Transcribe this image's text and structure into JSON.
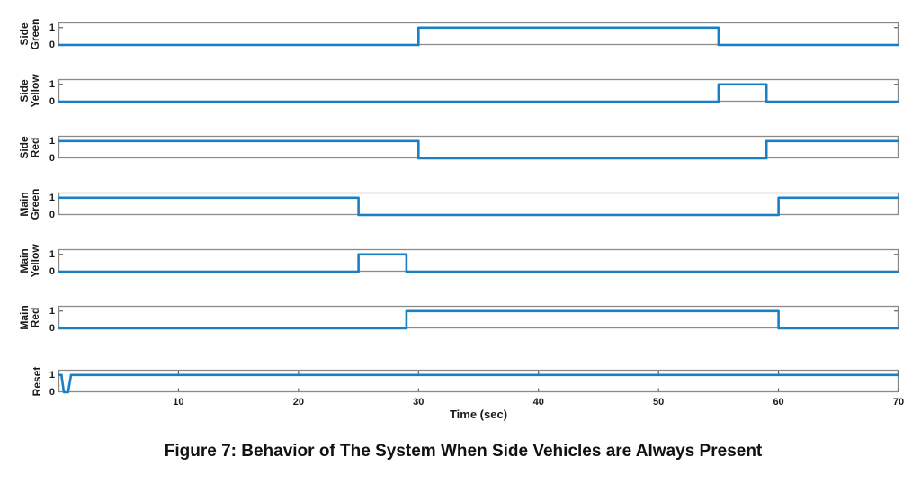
{
  "figure": {
    "caption": "Figure 7: Behavior of The System When Side Vehicles are Always Present"
  },
  "chart_data": {
    "type": "line",
    "subtype": "digital-timing-diagram-step",
    "title": "",
    "xlabel": "Time (sec)",
    "xlim": [
      0,
      70
    ],
    "ylim_per_subplot": [
      0,
      1.3
    ],
    "x_ticks": [
      10,
      20,
      30,
      40,
      50,
      60,
      70
    ],
    "y_tick_labels": [
      "1",
      "0"
    ],
    "grid": false,
    "legend_position": "none",
    "line_color": "#1b7fc4",
    "axis_color": "#8a8a8a",
    "tick_color": "#555555",
    "series": [
      {
        "name": "Side Green",
        "label_lines": [
          "Side",
          "Green"
        ],
        "points": [
          [
            0,
            0
          ],
          [
            30,
            0
          ],
          [
            30,
            1
          ],
          [
            55,
            1
          ],
          [
            55,
            0
          ],
          [
            70,
            0
          ]
        ]
      },
      {
        "name": "Side Yellow",
        "label_lines": [
          "Side",
          "Yellow"
        ],
        "points": [
          [
            0,
            0
          ],
          [
            55,
            0
          ],
          [
            55,
            1
          ],
          [
            59,
            1
          ],
          [
            59,
            0
          ],
          [
            70,
            0
          ]
        ]
      },
      {
        "name": "Side Red",
        "label_lines": [
          "Side",
          "Red"
        ],
        "points": [
          [
            0,
            1
          ],
          [
            30,
            1
          ],
          [
            30,
            0
          ],
          [
            59,
            0
          ],
          [
            59,
            1
          ],
          [
            70,
            1
          ]
        ]
      },
      {
        "name": "Main Green",
        "label_lines": [
          "Main",
          "Green"
        ],
        "points": [
          [
            0,
            1
          ],
          [
            25,
            1
          ],
          [
            25,
            0
          ],
          [
            60,
            0
          ],
          [
            60,
            1
          ],
          [
            70,
            1
          ]
        ]
      },
      {
        "name": "Main Yellow",
        "label_lines": [
          "Main",
          "Yellow"
        ],
        "points": [
          [
            0,
            0
          ],
          [
            25,
            0
          ],
          [
            25,
            1
          ],
          [
            29,
            1
          ],
          [
            29,
            0
          ],
          [
            70,
            0
          ]
        ]
      },
      {
        "name": "Main Red",
        "label_lines": [
          "Main",
          "Red"
        ],
        "points": [
          [
            0,
            0
          ],
          [
            29,
            0
          ],
          [
            29,
            1
          ],
          [
            60,
            1
          ],
          [
            60,
            0
          ],
          [
            70,
            0
          ]
        ]
      },
      {
        "name": "Reset",
        "label_lines": [
          "Reset"
        ],
        "points": [
          [
            0,
            1
          ],
          [
            0.25,
            1
          ],
          [
            0.45,
            0
          ],
          [
            0.8,
            0
          ],
          [
            1.05,
            1
          ],
          [
            70,
            1
          ]
        ]
      }
    ]
  }
}
